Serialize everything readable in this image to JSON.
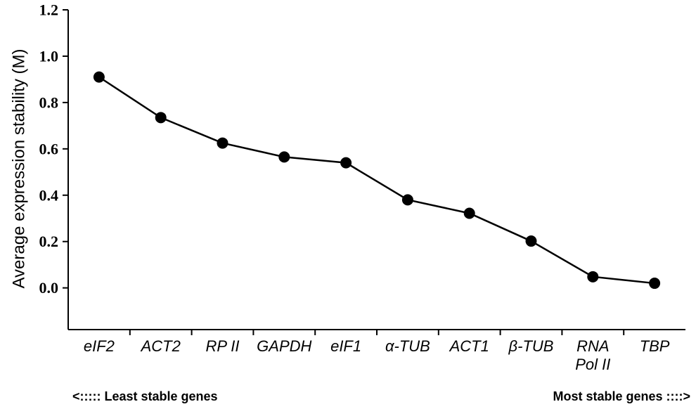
{
  "chart_data": {
    "type": "line",
    "title": "",
    "ylabel": "Average expression stability (M)",
    "xlabel": "",
    "categories": [
      "eIF2",
      "ACT2",
      "RP II",
      "GAPDH",
      "eIF1",
      "α-TUB",
      "ACT1",
      "β-TUB",
      "RNA Pol II",
      "TBP"
    ],
    "category_label_lines": [
      [
        "eIF2"
      ],
      [
        "ACT2"
      ],
      [
        "RP II"
      ],
      [
        "GAPDH"
      ],
      [
        "eIF1"
      ],
      [
        "α-TUB"
      ],
      [
        "ACT1"
      ],
      [
        "β-TUB"
      ],
      [
        "RNA",
        "Pol II"
      ],
      [
        "TBP"
      ]
    ],
    "values": [
      0.91,
      0.735,
      0.625,
      0.565,
      0.54,
      0.38,
      0.322,
      0.202,
      0.048,
      0.02
    ],
    "ylim": [
      -0.18,
      1.2
    ],
    "yticks": [
      "1.2",
      "1.0",
      "0.8",
      "0.6",
      "0.4",
      "0.2",
      "0.0"
    ],
    "ytick_values": [
      1.2,
      1.0,
      0.8,
      0.6,
      0.4,
      0.2,
      0.0
    ],
    "grid": false,
    "marker": "circle",
    "line_color": "#000000",
    "marker_color": "#000000"
  },
  "footer": {
    "left": "<:::::  Least stable genes",
    "right": "Most stable genes ::::>"
  }
}
